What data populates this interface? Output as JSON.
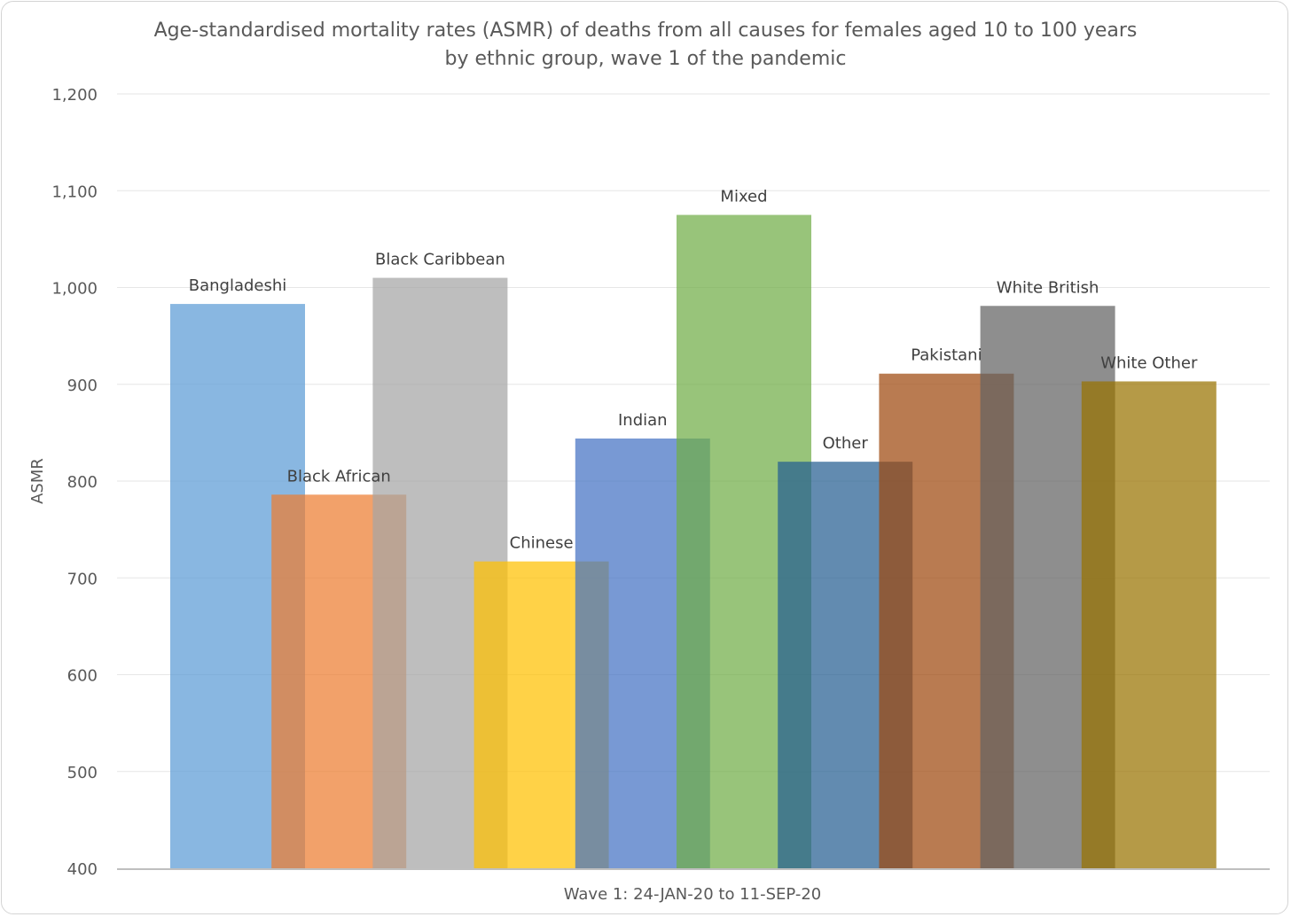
{
  "chart_data": {
    "type": "bar",
    "title_lines": [
      "Age-standardised mortality rates (ASMR) of deaths from all causes for females aged 10 to 100 years",
      "by ethnic group, wave 1 of the pandemic"
    ],
    "xlabel": "Wave 1: 24-JAN-20 to 11-SEP-20",
    "ylabel": "ASMR",
    "ylim": [
      400,
      1200
    ],
    "y_ticks": [
      400,
      500,
      600,
      700,
      800,
      900,
      1000,
      1100,
      1200
    ],
    "y_tick_labels": [
      "400",
      "500",
      "600",
      "700",
      "800",
      "900",
      "1,000",
      "1,100",
      "1,200"
    ],
    "grid": true,
    "legend": "none",
    "bars_overlap": true,
    "series": [
      {
        "name": "Bangladeshi",
        "value": 983,
        "color": "#5B9BD5"
      },
      {
        "name": "Black African",
        "value": 786,
        "color": "#ED7D31"
      },
      {
        "name": "Black Caribbean",
        "value": 1010,
        "color": "#A5A5A5"
      },
      {
        "name": "Chinese",
        "value": 717,
        "color": "#FFC000"
      },
      {
        "name": "Indian",
        "value": 844,
        "color": "#4472C4"
      },
      {
        "name": "Mixed",
        "value": 1075,
        "color": "#70AD47"
      },
      {
        "name": "Other",
        "value": 820,
        "color": "#255E91"
      },
      {
        "name": "Pakistani",
        "value": 911,
        "color": "#9E480E"
      },
      {
        "name": "White British",
        "value": 981,
        "color": "#636363"
      },
      {
        "name": "White Other",
        "value": 903,
        "color": "#997300"
      }
    ]
  }
}
